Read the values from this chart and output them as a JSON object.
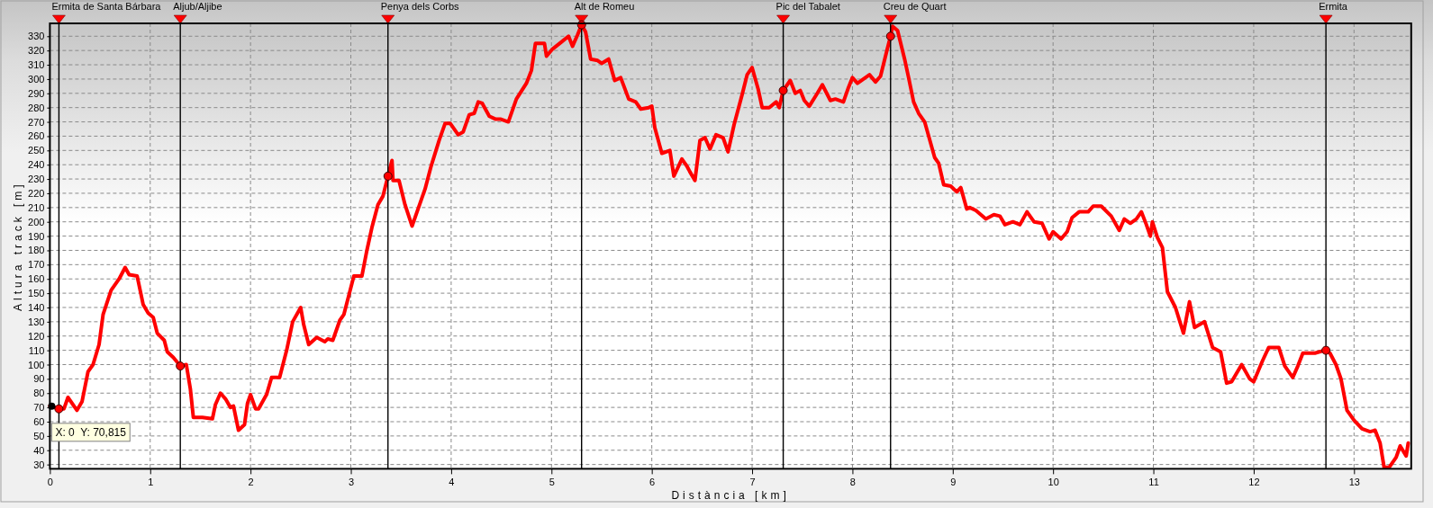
{
  "chart_data": {
    "type": "line",
    "xlabel": "Distància [km]",
    "ylabel": "Altura track [m]",
    "xlim": [
      0,
      13.57
    ],
    "ylim": [
      27,
      339
    ],
    "xticks": [
      0,
      1,
      2,
      3,
      4,
      5,
      6,
      7,
      8,
      9,
      10,
      11,
      12,
      13
    ],
    "yticks": [
      30,
      40,
      50,
      60,
      70,
      80,
      90,
      100,
      110,
      120,
      130,
      140,
      150,
      160,
      170,
      180,
      190,
      200,
      210,
      220,
      230,
      240,
      250,
      260,
      270,
      280,
      290,
      300,
      310,
      320,
      330
    ],
    "grid": true,
    "line_style": "solid",
    "series": [
      {
        "type": "line",
        "color": "#ff0000",
        "x": [
          0,
          0.1,
          0.14,
          0.18,
          0.27,
          0.32,
          0.38,
          0.43,
          0.49,
          0.53,
          0.61,
          0.69,
          0.75,
          0.79,
          0.87,
          0.93,
          0.98,
          1.03,
          1.07,
          1.14,
          1.17,
          1.23,
          1.3,
          1.36,
          1.4,
          1.43,
          1.52,
          1.62,
          1.65,
          1.7,
          1.75,
          1.8,
          1.83,
          1.88,
          1.94,
          1.97,
          2.0,
          2.05,
          2.08,
          2.16,
          2.21,
          2.29,
          2.36,
          2.42,
          2.5,
          2.53,
          2.58,
          2.66,
          2.74,
          2.77,
          2.82,
          2.89,
          2.93,
          3.03,
          3.08,
          3.11,
          3.16,
          3.21,
          3.27,
          3.32,
          3.37,
          3.41,
          3.42,
          3.48,
          3.54,
          3.61,
          3.67,
          3.74,
          3.8,
          3.88,
          3.94,
          3.99,
          4.07,
          4.12,
          4.18,
          4.23,
          4.27,
          4.31,
          4.38,
          4.44,
          4.49,
          4.57,
          4.65,
          4.75,
          4.8,
          4.84,
          4.93,
          4.95,
          5.01,
          5.1,
          5.17,
          5.21,
          5.26,
          5.3,
          5.34,
          5.39,
          5.46,
          5.5,
          5.57,
          5.63,
          5.69,
          5.77,
          5.84,
          5.89,
          5.97,
          6.0,
          6.03,
          6.1,
          6.18,
          6.22,
          6.3,
          6.35,
          6.38,
          6.43,
          6.48,
          6.53,
          6.58,
          6.64,
          6.71,
          6.76,
          6.82,
          6.9,
          6.95,
          7.0,
          7.06,
          7.1,
          7.17,
          7.24,
          7.27,
          7.31,
          7.38,
          7.43,
          7.48,
          7.52,
          7.57,
          7.65,
          7.7,
          7.78,
          7.83,
          7.91,
          7.96,
          8.0,
          8.05,
          8.17,
          8.23,
          8.28,
          8.34,
          8.38,
          8.4,
          8.45,
          8.52,
          8.56,
          8.61,
          8.66,
          8.72,
          8.82,
          8.86,
          8.91,
          8.98,
          9.04,
          9.08,
          9.14,
          9.17,
          9.23,
          9.33,
          9.41,
          9.47,
          9.52,
          9.6,
          9.67,
          9.74,
          9.81,
          9.89,
          9.96,
          10.0,
          10.08,
          10.14,
          10.19,
          10.26,
          10.35,
          10.4,
          10.48,
          10.58,
          10.66,
          10.71,
          10.77,
          10.83,
          10.88,
          10.93,
          10.97,
          10.99,
          11.04,
          11.09,
          11.14,
          11.22,
          11.3,
          11.36,
          11.41,
          11.51,
          11.59,
          11.67,
          11.73,
          11.78,
          11.83,
          11.88,
          11.96,
          12.0,
          12.09,
          12.15,
          12.25,
          12.31,
          12.39,
          12.44,
          12.49,
          12.61,
          12.71,
          12.76,
          12.82,
          12.87,
          12.93,
          13.0,
          13.08,
          13.16,
          13.21,
          13.26,
          13.3,
          13.35,
          13.42,
          13.46,
          13.52,
          13.54
        ],
        "values": [
          71,
          69,
          69,
          77,
          68,
          74,
          95,
          100,
          114,
          135,
          152,
          160,
          168,
          163,
          162,
          142,
          136,
          133,
          122,
          117,
          109,
          105,
          99,
          100,
          83,
          63,
          63,
          62,
          72,
          80,
          76,
          70,
          71,
          54,
          58,
          73,
          79,
          69,
          69,
          79,
          91,
          91,
          110,
          130,
          140,
          128,
          114,
          119,
          116,
          118,
          117,
          131,
          135,
          162,
          162,
          162,
          180,
          196,
          212,
          218,
          232,
          243,
          229,
          229,
          212,
          197,
          209,
          223,
          239,
          257,
          269,
          269,
          261,
          263,
          275,
          276,
          284,
          283,
          274,
          272,
          272,
          270,
          286,
          297,
          306,
          325,
          325,
          316,
          321,
          326,
          330,
          323,
          331,
          338,
          333,
          314,
          313,
          311,
          314,
          299,
          301,
          286,
          284,
          279,
          280,
          281,
          266,
          248,
          250,
          232,
          244,
          239,
          235,
          229,
          257,
          259,
          251,
          261,
          259,
          249,
          268,
          289,
          303,
          308,
          293,
          280,
          280,
          284,
          280,
          292,
          299,
          290,
          292,
          285,
          281,
          290,
          296,
          285,
          286,
          284,
          294,
          301,
          297,
          303,
          298,
          302,
          319,
          330,
          337,
          334,
          314,
          301,
          284,
          276,
          270,
          245,
          241,
          226,
          225,
          221,
          224,
          209,
          210,
          208,
          202,
          205,
          204,
          198,
          200,
          198,
          207,
          200,
          199,
          188,
          193,
          188,
          193,
          203,
          207,
          207,
          211,
          211,
          204,
          194,
          202,
          199,
          202,
          207,
          198,
          190,
          200,
          189,
          182,
          151,
          140,
          122,
          144,
          126,
          130,
          112,
          109,
          87,
          88,
          94,
          100,
          90,
          88,
          103,
          112,
          112,
          99,
          91,
          99,
          108,
          108,
          110,
          108,
          100,
          90,
          68,
          61,
          55,
          53,
          54,
          45,
          28,
          28,
          35,
          43,
          36,
          45
        ]
      },
      {
        "type": "scatter",
        "color": "#ff0000",
        "marker": "circle",
        "x": [
          0.09,
          1.3,
          3.37,
          5.3,
          7.31,
          8.38,
          12.72
        ],
        "values": [
          69,
          99,
          232,
          338,
          292,
          330,
          110
        ]
      }
    ],
    "ref_lines": [
      {
        "axis": "x",
        "value": 0.09,
        "label": "Ermita de Santa Bárbara",
        "color": "#000000"
      },
      {
        "axis": "x",
        "value": 1.3,
        "label": "Aljub/Aljibe",
        "color": "#000000"
      },
      {
        "axis": "x",
        "value": 3.37,
        "label": "Penya dels Corbs",
        "color": "#000000"
      },
      {
        "axis": "x",
        "value": 5.3,
        "label": "Alt de Romeu",
        "color": "#000000"
      },
      {
        "axis": "x",
        "value": 7.31,
        "label": "Pic del Tabalet",
        "color": "#000000"
      },
      {
        "axis": "x",
        "value": 8.38,
        "label": "Creu de Quart",
        "color": "#000000"
      },
      {
        "axis": "x",
        "value": 12.72,
        "label": "Ermita",
        "color": "#000000"
      }
    ],
    "annotations": [
      {
        "text": "X: 0  Y: 70,815",
        "x": 0,
        "y": 70.815
      }
    ]
  }
}
